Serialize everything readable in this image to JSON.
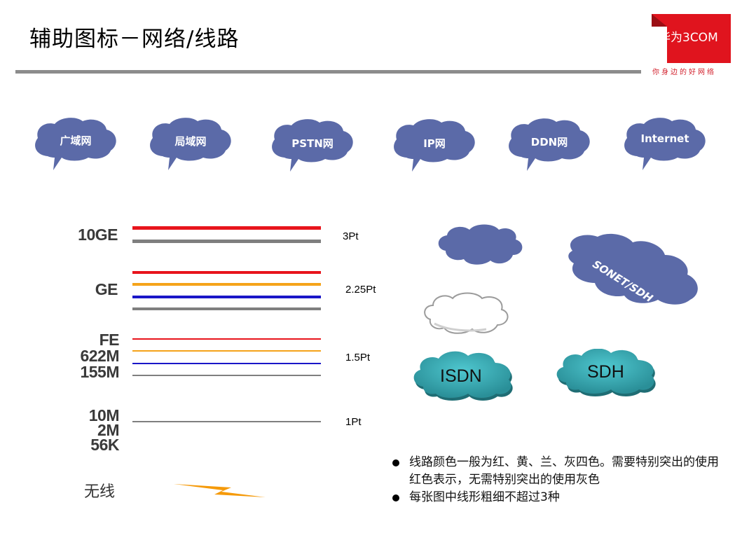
{
  "title": "辅助图标－网络/线路",
  "logo": {
    "brand": "华为3COM",
    "slogan": "你身边的好网络",
    "color": "#d2202c"
  },
  "network_bubbles": [
    {
      "label": "广域网"
    },
    {
      "label": "局域网"
    },
    {
      "label": "PSTN网"
    },
    {
      "label": "IP网"
    },
    {
      "label": "DDN网"
    },
    {
      "label": "Internet"
    }
  ],
  "bubble_color": "#5b6aa8",
  "line_groups": [
    {
      "labels": [
        "10GE"
      ],
      "weight": "3Pt",
      "colors": [
        "#e8141c",
        "#7f7f7f"
      ]
    },
    {
      "labels": [
        "GE"
      ],
      "weight": "2.25Pt",
      "colors": [
        "#e8141c",
        "#f5a31a",
        "#1a16c8",
        "#7f7f7f"
      ]
    },
    {
      "labels": [
        "FE",
        "622M",
        "155M"
      ],
      "weight": "1.5Pt",
      "colors": [
        "#e8141c",
        "#f5a31a",
        "#1a16c8",
        "#7f7f7f"
      ]
    },
    {
      "labels": [
        "10M",
        "2M",
        "56K"
      ],
      "weight": "1Pt",
      "colors": [
        "#7f7f7f"
      ]
    }
  ],
  "wireless": {
    "label": "无线",
    "color": "#f59a0a"
  },
  "clouds": {
    "sonet": "SONET/SDH",
    "isdn": "ISDN",
    "sdh": "SDH"
  },
  "notes": [
    "线路颜色一般为红、黄、兰、灰四色。需要特别突出的使用红色表示，无需特别突出的使用灰色",
    "每张图中线形粗细不超过3种"
  ]
}
